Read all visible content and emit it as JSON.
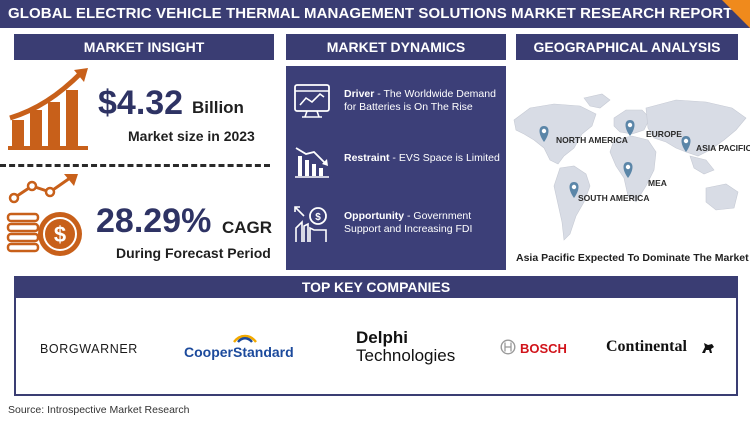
{
  "title": "GLOBAL ELECTRIC VEHICLE THERMAL MANAGEMENT SOLUTIONS MARKET RESEARCH REPORT",
  "sections": {
    "insight": "MARKET INSIGHT",
    "dynamics": "MARKET DYNAMICS",
    "geo": "GEOGRAPHICAL ANALYSIS",
    "companies": "TOP KEY COMPANIES"
  },
  "insight": {
    "market_value": "$4.32",
    "market_unit": "Billion",
    "market_caption": "Market size in 2023",
    "cagr_value": "28.29%",
    "cagr_unit": "CAGR",
    "cagr_caption": "During Forecast Period"
  },
  "dynamics": [
    {
      "label": "Driver",
      "text": " - The Worldwide Demand for Batteries is On The Rise"
    },
    {
      "label": "Restraint",
      "text": " - EVS Space is Limited"
    },
    {
      "label": "Opportunity",
      "text": " - Government Support and Increasing FDI"
    }
  ],
  "geo": {
    "regions": [
      "NORTH AMERICA",
      "EUROPE",
      "ASIA PACIFIC",
      "MEA",
      "SOUTH AMERICA"
    ],
    "caption": "Asia Pacific Expected To Dominate The Market"
  },
  "companies": {
    "borgwarner": "BORGWARNER",
    "cooper": "CooperStandard",
    "delphi_line1": "Delphi",
    "delphi_line2": "Technologies",
    "bosch": "BOSCH",
    "continental": "Continental"
  },
  "source": "Source: Introspective Market Research",
  "colors": {
    "navy": "#3a3d73",
    "orange": "#d2691e",
    "map_gray": "#d5d9e2",
    "pin_blue": "#5b86a8"
  }
}
